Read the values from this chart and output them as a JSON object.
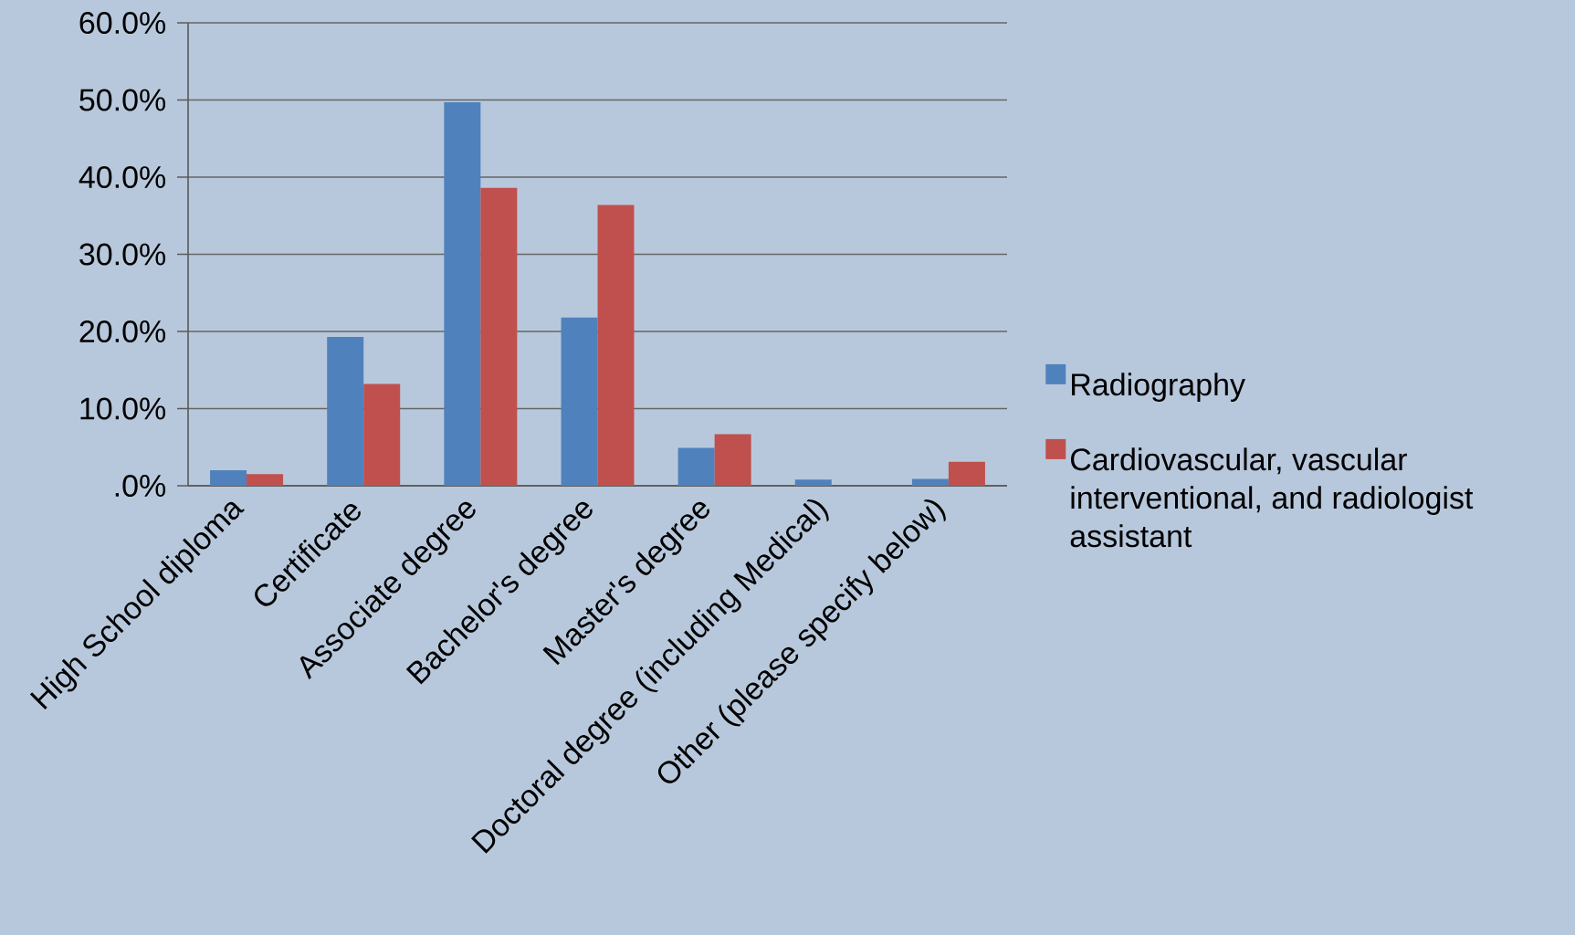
{
  "chart_data": {
    "type": "bar",
    "categories": [
      "High School diploma",
      "Certificate",
      "Associate degree",
      "Bachelor's degree",
      "Master's degree",
      "Doctoral degree (including Medical)",
      "Other (please specify below)"
    ],
    "series": [
      {
        "name": "Radiography",
        "color": "#4f81bd",
        "values": [
          2.0,
          19.3,
          49.7,
          21.8,
          4.9,
          0.8,
          0.9
        ]
      },
      {
        "name": "Cardiovascular, vascular interventional, and radiologist assistant",
        "color": "#c0504d",
        "values": [
          1.5,
          13.2,
          38.6,
          36.4,
          6.7,
          0,
          3.1
        ]
      }
    ],
    "ylim": [
      0,
      60
    ],
    "yticks": [
      {
        "value": 0,
        "label": ".0%"
      },
      {
        "value": 10,
        "label": "10.0%"
      },
      {
        "value": 20,
        "label": "20.0%"
      },
      {
        "value": 30,
        "label": "30.0%"
      },
      {
        "value": 40,
        "label": "40.0%"
      },
      {
        "value": 50,
        "label": "50.0%"
      },
      {
        "value": 60,
        "label": "60.0%"
      }
    ],
    "grid": "y",
    "legend": "right"
  }
}
